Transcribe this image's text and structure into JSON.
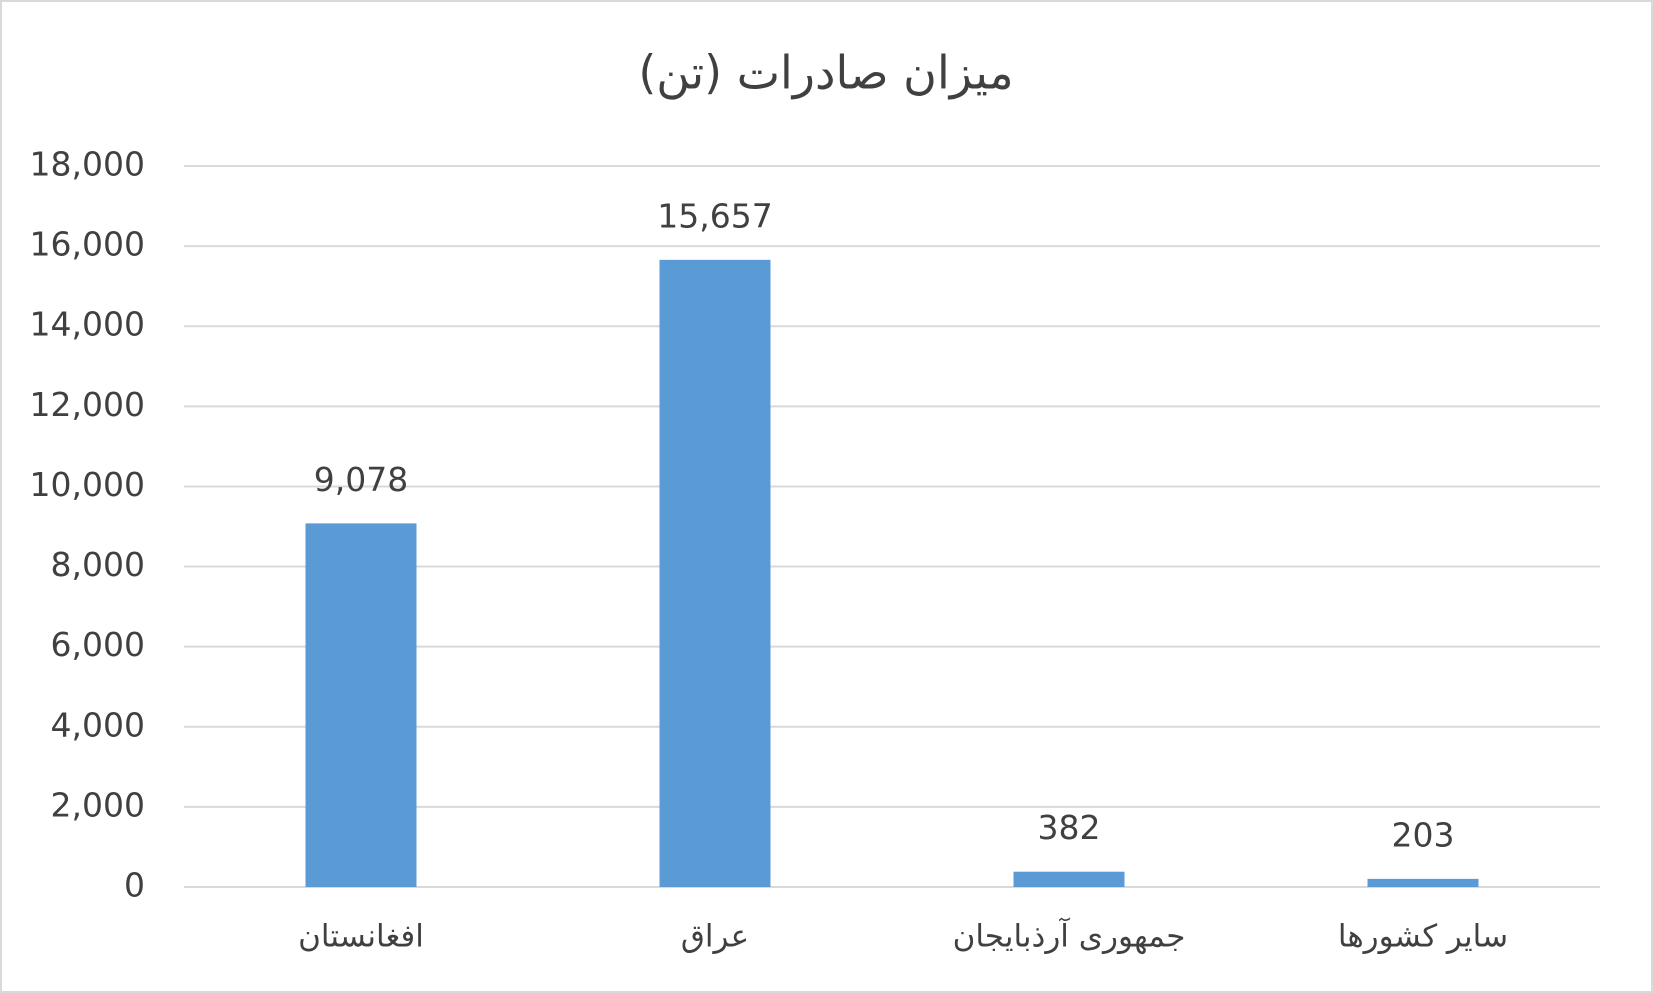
{
  "chart_data": {
    "type": "bar",
    "title": "میزان صادرات (تن)",
    "categories": [
      "افغانستان",
      "عراق",
      "جمهوری آرذبایجان",
      "سایر کشورها"
    ],
    "values": [
      9078,
      15657,
      382,
      203
    ],
    "value_labels": [
      "9,078",
      "15,657",
      "382",
      "203"
    ],
    "color": "#5b9bd5",
    "ylim": [
      0,
      18000
    ],
    "yticks": [
      0,
      {
        "value": 2000,
        "label": "2,000"
      },
      {
        "value": 4000,
        "label": "4,000"
      },
      {
        "value": 6000,
        "label": "6,000"
      },
      {
        "value": 8000,
        "label": "8,000"
      },
      {
        "value": 10000,
        "label": "10,000"
      },
      {
        "value": 12000,
        "label": "12,000"
      },
      {
        "value": 14000,
        "label": "14,000"
      },
      {
        "value": 16000,
        "label": "16,000"
      },
      {
        "value": 18000,
        "label": "18,000"
      }
    ],
    "grid": true
  }
}
